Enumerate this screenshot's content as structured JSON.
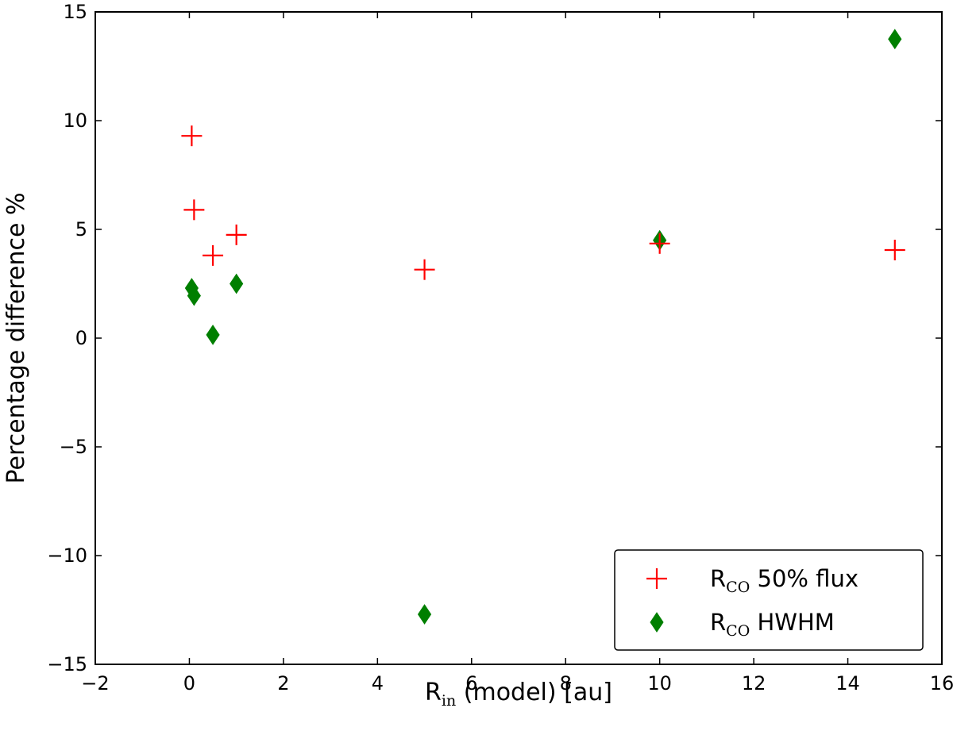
{
  "chart_data": {
    "type": "scatter",
    "title": "",
    "xlabel": {
      "main": "R",
      "sub": "in",
      "rest": " (model) [au]"
    },
    "ylabel": "Percentage difference %",
    "xlim": [
      -2,
      16
    ],
    "ylim": [
      -15,
      15
    ],
    "xticks": [
      -2,
      0,
      2,
      4,
      6,
      8,
      10,
      12,
      14,
      16
    ],
    "yticks": [
      -15,
      -10,
      -5,
      0,
      5,
      10,
      15
    ],
    "grid": false,
    "legend_position": "lower right",
    "series": [
      {
        "name": {
          "main": "R",
          "sub": "CO",
          "rest": " 50% flux"
        },
        "marker": "plus",
        "color": "#ff0000",
        "points": [
          {
            "x": 0.05,
            "y": 9.3
          },
          {
            "x": 0.1,
            "y": 5.9
          },
          {
            "x": 0.5,
            "y": 3.8
          },
          {
            "x": 1.0,
            "y": 4.75
          },
          {
            "x": 5.0,
            "y": 3.15
          },
          {
            "x": 10.0,
            "y": 4.35
          },
          {
            "x": 15.0,
            "y": 4.05
          }
        ]
      },
      {
        "name": {
          "main": "R",
          "sub": "CO",
          "rest": " HWHM"
        },
        "marker": "thin-diamond",
        "color": "#007f00",
        "points": [
          {
            "x": 0.05,
            "y": 2.3
          },
          {
            "x": 0.1,
            "y": 1.95
          },
          {
            "x": 0.5,
            "y": 0.15
          },
          {
            "x": 1.0,
            "y": 2.5
          },
          {
            "x": 5.0,
            "y": -12.7
          },
          {
            "x": 10.0,
            "y": 4.5
          },
          {
            "x": 15.0,
            "y": 13.75
          }
        ]
      }
    ]
  }
}
